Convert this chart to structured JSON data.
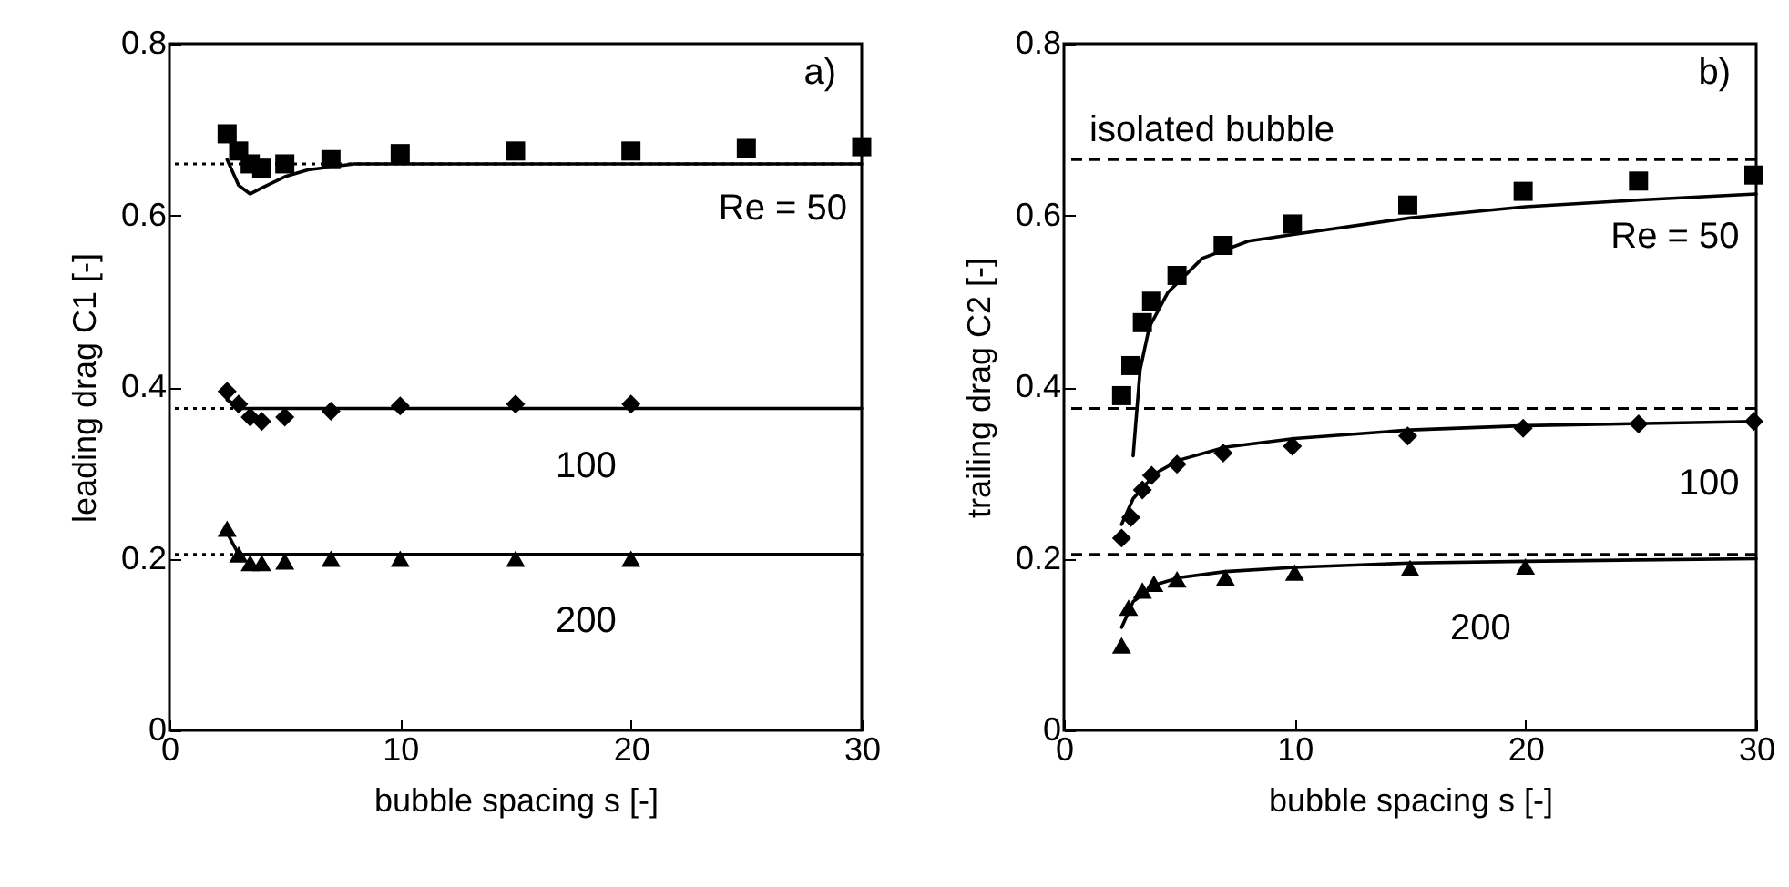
{
  "chart_data": [
    {
      "type": "scatter",
      "xlabel": "bubble spacing  s [-]",
      "ylabel": "leading drag  C1 [-]",
      "xlim": [
        0,
        30
      ],
      "ylim": [
        0,
        0.8
      ],
      "xticks": [
        0,
        10,
        20,
        30
      ],
      "yticks": [
        0,
        0.2,
        0.4,
        0.6,
        0.8
      ],
      "grid": false,
      "legend": false,
      "series": [
        {
          "type": "scatter",
          "name": "Re = 50",
          "marker": "square",
          "color": "#000000",
          "x": [
            2.5,
            3,
            3.5,
            4,
            5,
            7,
            10,
            15,
            20,
            25,
            30
          ],
          "values": [
            0.695,
            0.675,
            0.66,
            0.655,
            0.66,
            0.665,
            0.672,
            0.675,
            0.675,
            0.678,
            0.68
          ]
        },
        {
          "type": "scatter",
          "name": "100",
          "marker": "diamond",
          "color": "#000000",
          "x": [
            2.5,
            3,
            3.5,
            4,
            5,
            7,
            10,
            15,
            20
          ],
          "values": [
            0.395,
            0.38,
            0.365,
            0.36,
            0.365,
            0.372,
            0.378,
            0.38,
            0.38
          ]
        },
        {
          "type": "scatter",
          "name": "200",
          "marker": "triangle",
          "color": "#000000",
          "x": [
            2.5,
            3,
            3.5,
            4,
            5,
            7,
            10,
            15,
            20
          ],
          "values": [
            0.235,
            0.205,
            0.195,
            0.195,
            0.197,
            0.2,
            0.2,
            0.2,
            0.2
          ]
        },
        {
          "type": "line",
          "marker": "none",
          "line_style": "solid",
          "color": "#000000",
          "x": [
            2.5,
            3,
            3.5,
            4,
            5,
            6,
            8,
            30
          ],
          "values": [
            0.665,
            0.635,
            0.625,
            0.632,
            0.645,
            0.653,
            0.66,
            0.66
          ]
        },
        {
          "type": "line",
          "marker": "none",
          "line_style": "solid",
          "color": "#000000",
          "x": [
            2.5,
            3.2,
            30
          ],
          "values": [
            0.385,
            0.375,
            0.375
          ]
        },
        {
          "type": "line",
          "marker": "none",
          "line_style": "solid",
          "color": "#000000",
          "x": [
            2.5,
            3,
            30
          ],
          "values": [
            0.23,
            0.205,
            0.205
          ]
        }
      ],
      "ref_lines": [
        {
          "axis": "y",
          "value": 0.66,
          "line_style": "dotted"
        },
        {
          "axis": "y",
          "value": 0.375,
          "line_style": "dotted"
        },
        {
          "axis": "y",
          "value": 0.205,
          "line_style": "dotted"
        }
      ],
      "annotations": [
        "a)"
      ]
    },
    {
      "type": "scatter",
      "xlabel": "bubble spacing  s [-]",
      "ylabel": "trailing drag  C2 [-]",
      "xlim": [
        0,
        30
      ],
      "ylim": [
        0,
        0.8
      ],
      "xticks": [
        0,
        10,
        20,
        30
      ],
      "yticks": [
        0,
        0.2,
        0.4,
        0.6,
        0.8
      ],
      "grid": false,
      "legend": false,
      "series": [
        {
          "type": "scatter",
          "name": "Re = 50",
          "marker": "square",
          "color": "#000000",
          "x": [
            2.5,
            2.9,
            3.4,
            3.8,
            4.9,
            6.9,
            9.9,
            14.9,
            19.9,
            24.9,
            29.9
          ],
          "values": [
            0.39,
            0.425,
            0.475,
            0.5,
            0.53,
            0.565,
            0.59,
            0.612,
            0.628,
            0.64,
            0.647
          ]
        },
        {
          "type": "scatter",
          "name": "100",
          "marker": "diamond",
          "color": "#000000",
          "x": [
            2.5,
            2.9,
            3.4,
            3.8,
            4.9,
            6.9,
            9.9,
            14.9,
            19.9,
            24.9,
            29.9
          ],
          "values": [
            0.224,
            0.248,
            0.28,
            0.297,
            0.31,
            0.323,
            0.331,
            0.343,
            0.352,
            0.357,
            0.36
          ]
        },
        {
          "type": "scatter",
          "name": "200",
          "marker": "triangle",
          "color": "#000000",
          "x": [
            2.5,
            2.8,
            3.4,
            3.9,
            4.9,
            7,
            10,
            15,
            20
          ],
          "values": [
            0.099,
            0.143,
            0.163,
            0.171,
            0.176,
            0.178,
            0.184,
            0.189,
            0.191
          ]
        },
        {
          "type": "line",
          "marker": "none",
          "line_style": "solid",
          "color": "#000000",
          "x": [
            3,
            3.3,
            3.7,
            4.5,
            6,
            8,
            10,
            15,
            20,
            25,
            30
          ],
          "values": [
            0.32,
            0.42,
            0.47,
            0.51,
            0.55,
            0.57,
            0.578,
            0.597,
            0.61,
            0.618,
            0.625
          ]
        },
        {
          "type": "line",
          "marker": "none",
          "line_style": "solid",
          "color": "#000000",
          "x": [
            2.5,
            3,
            4,
            5,
            7,
            10,
            15,
            20,
            30
          ],
          "values": [
            0.24,
            0.27,
            0.3,
            0.315,
            0.33,
            0.34,
            0.35,
            0.355,
            0.36
          ]
        },
        {
          "type": "line",
          "marker": "none",
          "line_style": "solid",
          "color": "#000000",
          "x": [
            2.5,
            3,
            4,
            5,
            7,
            10,
            15,
            20,
            30
          ],
          "values": [
            0.12,
            0.15,
            0.17,
            0.178,
            0.185,
            0.19,
            0.195,
            0.197,
            0.2
          ]
        }
      ],
      "ref_lines": [
        {
          "axis": "y",
          "value": 0.665,
          "line_style": "dashed",
          "label": "isolated bubble"
        },
        {
          "axis": "y",
          "value": 0.375,
          "line_style": "dashed"
        },
        {
          "axis": "y",
          "value": 0.205,
          "line_style": "dashed"
        }
      ],
      "annotations": [
        "b)"
      ]
    }
  ]
}
